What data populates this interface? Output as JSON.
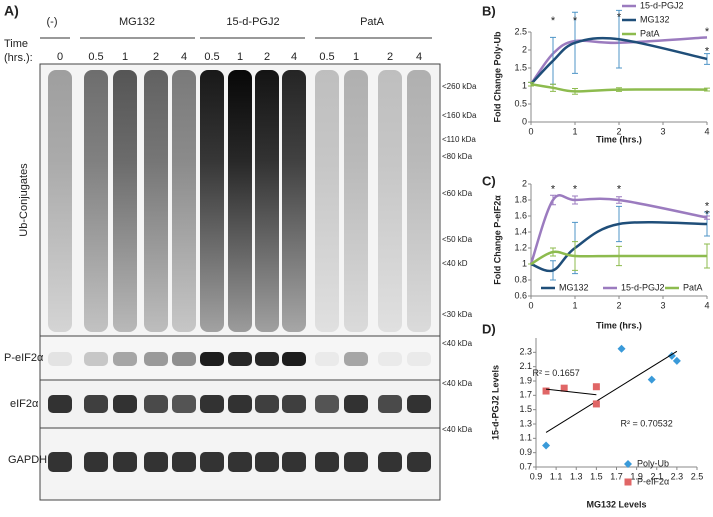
{
  "blot": {
    "panel_label": "A)",
    "groups": [
      "(-)",
      "MG132",
      "15-d-PGJ2",
      "PatA"
    ],
    "time_label": [
      "Time",
      "(hrs.):"
    ],
    "times": [
      "0",
      "0.5",
      "1",
      "2",
      "4",
      "0.5",
      "1",
      "2",
      "4",
      "0.5",
      "1",
      "2",
      "4"
    ],
    "rows": [
      "Ub-Conjugates",
      "P-eIF2α",
      "eIF2α",
      "GAPDH"
    ],
    "markers": [
      "<260 kDa",
      "<160 kDa",
      "<110 kDa",
      "<80 kDa",
      "<60 kDa",
      "<50 kDa",
      "<40 kD",
      "<30 kDa",
      "<40 kDa",
      "<40 kDa",
      "<40 kDa"
    ]
  },
  "chart_data": [
    {
      "type": "line",
      "panel_label": "B)",
      "ylabel": "Fold Change Poly-Ub",
      "xlabel": "Time (hrs.)",
      "x": [
        0,
        0.5,
        1,
        2,
        4
      ],
      "xlim": [
        0,
        4
      ],
      "xticks": [
        0,
        1,
        2,
        3,
        4
      ],
      "ylim": [
        0,
        2.5
      ],
      "yticks": [
        0,
        0.5,
        1,
        1.5,
        2,
        2.5
      ],
      "legend": "top-right-vertical",
      "series": [
        {
          "name": "15-d-PGJ2",
          "color": "#9b7bbf",
          "values": [
            1.05,
            1.9,
            2.25,
            2.2,
            2.35
          ]
        },
        {
          "name": "MG132",
          "color": "#1f4e79",
          "values": [
            1.05,
            1.7,
            2.2,
            2.3,
            1.75
          ],
          "errors": [
            0.05,
            0.65,
            0.85,
            0.8,
            0.15
          ],
          "error_color": "#4f95c7"
        },
        {
          "name": "PatA",
          "color": "#8dbb4e",
          "values": [
            1.05,
            0.95,
            0.85,
            0.9,
            0.9
          ],
          "errors": [
            0.05,
            0.1,
            0.08,
            0.05,
            0.04
          ],
          "error_color": "#8dbb4e"
        }
      ],
      "annotations": [
        {
          "text": "*",
          "x": 0.5,
          "y": 2.8,
          "color": "#9b7bbf"
        },
        {
          "text": "*",
          "x": 1,
          "y": 2.8,
          "color": "#9b7bbf"
        },
        {
          "text": "*",
          "x": 2,
          "y": 2.9,
          "color": "#9b7bbf"
        },
        {
          "text": "*",
          "x": 4,
          "y": 2.5,
          "color": "#9b7bbf"
        },
        {
          "text": "*",
          "x": 4,
          "y": 1.95,
          "color": "#1f4e79"
        }
      ]
    },
    {
      "type": "line",
      "panel_label": "C)",
      "ylabel": "Fold Change P-eIF2α",
      "xlabel": "Time (hrs.)",
      "x": [
        0,
        0.5,
        1,
        2,
        4
      ],
      "xlim": [
        0,
        4
      ],
      "xticks": [
        0,
        1,
        2,
        3,
        4
      ],
      "ylim": [
        0.6,
        2
      ],
      "yticks": [
        0.6,
        0.8,
        1,
        1.2,
        1.4,
        1.6,
        1.8,
        2
      ],
      "legend": "bottom-horizontal",
      "series": [
        {
          "name": "MG132",
          "color": "#1f4e79",
          "values": [
            1,
            0.92,
            1.2,
            1.5,
            1.5
          ],
          "errors": [
            0,
            0.12,
            0.32,
            0.22,
            0.15
          ],
          "error_color": "#4f95c7"
        },
        {
          "name": "15-d-PGJ2",
          "color": "#9b7bbf",
          "values": [
            1,
            1.8,
            1.8,
            1.8,
            1.58
          ],
          "errors": [
            0,
            0.06,
            0.05,
            0.04,
            0.02
          ],
          "error_color": "#9b7bbf"
        },
        {
          "name": "PatA",
          "color": "#8dbb4e",
          "values": [
            1,
            1.15,
            1.1,
            1.1,
            1.1
          ],
          "errors": [
            0,
            0.05,
            0.18,
            0.12,
            0.15
          ],
          "error_color": "#8dbb4e"
        }
      ],
      "annotations": [
        {
          "text": "*",
          "x": 0.5,
          "y": 1.93,
          "color": "#9b7bbf"
        },
        {
          "text": "*",
          "x": 1,
          "y": 1.93,
          "color": "#9b7bbf"
        },
        {
          "text": "*",
          "x": 2,
          "y": 1.93,
          "color": "#9b7bbf"
        },
        {
          "text": "*",
          "x": 4,
          "y": 1.72,
          "color": "#9b7bbf"
        },
        {
          "text": "*",
          "x": 4,
          "y": 1.62,
          "color": "#1f4e79"
        }
      ]
    },
    {
      "type": "scatter",
      "panel_label": "D)",
      "ylabel": "15-d-PGJ2 Levels",
      "xlabel": "MG132 Levels",
      "xlim": [
        0.9,
        2.5
      ],
      "xticks": [
        0.9,
        1.1,
        1.3,
        1.5,
        1.7,
        1.9,
        2.1,
        2.3,
        2.5
      ],
      "ylim": [
        0.7,
        2.5
      ],
      "yticks": [
        0.7,
        0.9,
        1.1,
        1.3,
        1.5,
        1.7,
        1.9,
        2.1,
        2.3
      ],
      "series": [
        {
          "name": "Poly-Ub",
          "color": "#3a9ad9",
          "marker": "diamond",
          "x": [
            1,
            1.75,
            2.05,
            2.25,
            2.3
          ],
          "values": [
            1,
            2.35,
            1.92,
            2.25,
            2.18
          ]
        },
        {
          "name": "P-eIF2α",
          "color": "#e06666",
          "marker": "square",
          "x": [
            1,
            1.18,
            1.5,
            1.5
          ],
          "values": [
            1.76,
            1.8,
            1.82,
            1.58
          ]
        }
      ],
      "annotations": [
        {
          "text": "R² = 0.1657",
          "x": 1.1,
          "y": 2.0
        },
        {
          "text": "R² = 0.70532",
          "x": 2.0,
          "y": 1.3
        }
      ]
    }
  ]
}
